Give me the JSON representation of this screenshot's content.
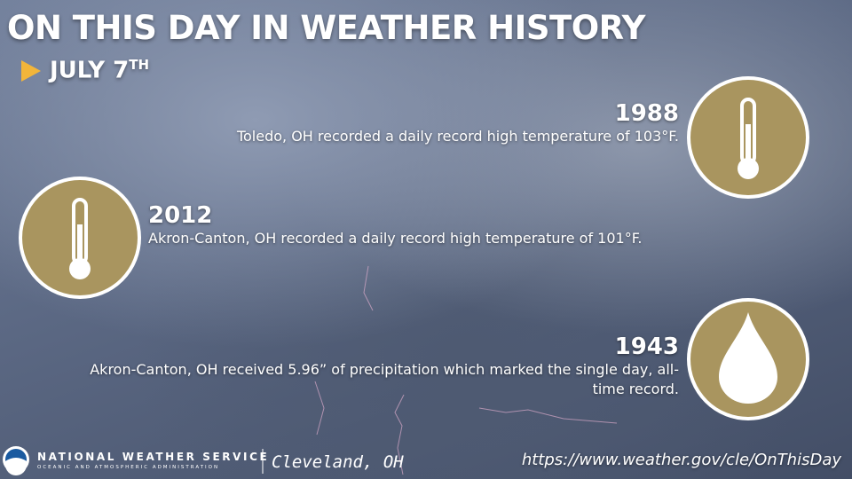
{
  "header": {
    "title": "ON THIS DAY IN WEATHER HISTORY",
    "date": "JULY 7",
    "date_suffix": "TH"
  },
  "events": [
    {
      "year": "1988",
      "text": "Toledo, OH recorded a daily record high temperature of 103°F."
    },
    {
      "year": "2012",
      "text": "Akron-Canton, OH recorded a daily record high temperature of 101°F."
    },
    {
      "year": "1943",
      "text": "Akron-Canton, OH received 5.96” of precipitation which marked the single day, all-time record."
    }
  ],
  "footer": {
    "agency": "NATIONAL WEATHER SERVICE",
    "parent": "OCEANIC AND ATMOSPHERIC ADMINISTRATION",
    "office": "Cleveland, OH",
    "url": "https://www.weather.gov/cle/OnThisDay"
  }
}
